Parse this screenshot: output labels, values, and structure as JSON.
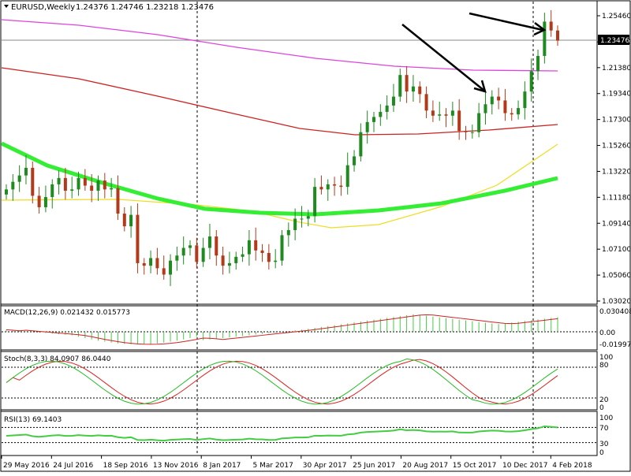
{
  "header": {
    "symbol": "EURUSD,Weekly",
    "ohlc": "1.24376 1.24746 1.23218 1.23476",
    "last_price": "1.23476"
  },
  "price_axis": [
    "1.25460",
    "1.23400",
    "1.21380",
    "1.19340",
    "1.17300",
    "1.15260",
    "1.13220",
    "1.11180",
    "1.09140",
    "1.07100",
    "1.05060",
    "1.03020"
  ],
  "macd": {
    "label": "MACD(12,26,9) 0.021432 0.015773",
    "ticks": [
      "0.030408",
      "0.00",
      "-0.019979"
    ]
  },
  "stoch": {
    "label": "Stoch(8,3,3) 84.0907 86.0440",
    "ticks": [
      "100",
      "80",
      "20",
      "0"
    ]
  },
  "rsi": {
    "label": "RSI(13) 69.1403",
    "ticks": [
      "100",
      "70",
      "30",
      "0"
    ]
  },
  "date_axis": [
    "29 May 2016",
    "24 Jul 2016",
    "18 Sep 2016",
    "13 Nov 2016",
    "8 Jan 2017",
    "5 Mar 2017",
    "30 Apr 2017",
    "25 Jun 2017",
    "20 Aug 2017",
    "15 Oct 2017",
    "10 Dec 2017",
    "4 Feb 2018"
  ],
  "colors": {
    "bull": "#1f8a1f",
    "bear": "#b23a1a",
    "ma_green": "#33ee33",
    "ma_magenta": "#dd44dd",
    "ma_red": "#cc2222",
    "ma_yellow": "#eedd22",
    "macd_hist": "#44cc44",
    "macd_signal": "#cc2222",
    "stoch_main": "#22bb22",
    "stoch_signal": "#dd2222",
    "rsi_line": "#44cc44",
    "grid": "#000000",
    "arrow": "#000000"
  },
  "chart_data": {
    "type": "candlestick",
    "timeframe": "weekly",
    "ylim": [
      1.0302,
      1.2546
    ],
    "x": [
      "29 May 2016",
      "24 Jul 2016",
      "18 Sep 2016",
      "13 Nov 2016",
      "8 Jan 2017",
      "5 Mar 2017",
      "30 Apr 2017",
      "25 Jun 2017",
      "20 Aug 2017",
      "15 Oct 2017",
      "10 Dec 2017",
      "4 Feb 2018"
    ],
    "close_path": [
      1.118,
      1.124,
      1.129,
      1.135,
      1.113,
      1.104,
      1.112,
      1.122,
      1.127,
      1.117,
      1.118,
      1.127,
      1.121,
      1.117,
      1.125,
      1.118,
      1.119,
      1.099,
      1.089,
      1.098,
      1.06,
      1.058,
      1.064,
      1.056,
      1.051,
      1.062,
      1.066,
      1.072,
      1.074,
      1.061,
      1.072,
      1.081,
      1.066,
      1.058,
      1.06,
      1.065,
      1.067,
      1.078,
      1.07,
      1.068,
      1.061,
      1.062,
      1.082,
      1.086,
      1.095,
      1.095,
      1.097,
      1.12,
      1.118,
      1.122,
      1.121,
      1.12,
      1.137,
      1.144,
      1.163,
      1.171,
      1.175,
      1.179,
      1.184,
      1.191,
      1.208,
      1.195,
      1.199,
      1.193,
      1.18,
      1.176,
      1.177,
      1.176,
      1.18,
      1.164,
      1.163,
      1.163,
      1.178,
      1.185,
      1.191,
      1.188,
      1.178,
      1.177,
      1.182,
      1.195,
      1.211,
      1.223,
      1.25,
      1.243,
      1.235
    ],
    "moving_averages": [
      {
        "name": "MA green",
        "values_start": 1.152,
        "values_end": 1.129
      },
      {
        "name": "MA magenta",
        "values_start": 1.25,
        "values_end": 1.212
      },
      {
        "name": "MA red",
        "values_start": 1.217,
        "values_end": 1.169
      },
      {
        "name": "MA yellow",
        "values_start": 1.111,
        "values_end": 1.153
      }
    ],
    "macd": {
      "current": 0.021432,
      "signal": 0.015773,
      "range": [
        -0.019979,
        0.030408
      ]
    },
    "stoch": {
      "main": 84.0907,
      "signal": 86.044,
      "levels": [
        20,
        80
      ]
    },
    "rsi": {
      "value": 69.1403,
      "levels": [
        30,
        70
      ]
    }
  }
}
